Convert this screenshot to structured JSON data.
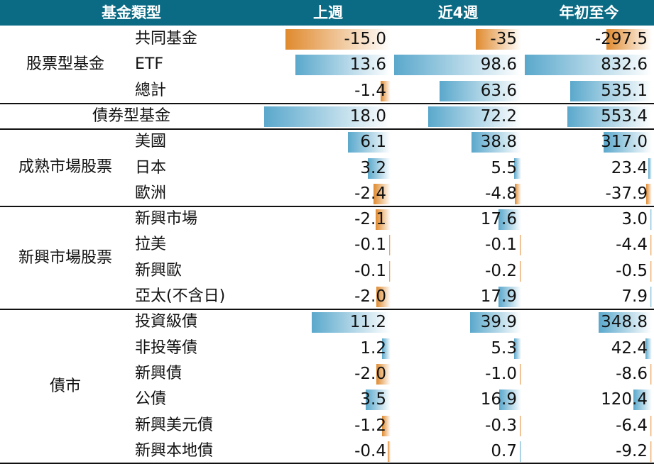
{
  "colors": {
    "header_bg": "#0b6b84",
    "header_text": "#ffffff",
    "positive_bar": "#5aa8cc",
    "negative_bar": "#e08a2e"
  },
  "header": {
    "category": "基金類型",
    "col1": "上週",
    "col2": "近4週",
    "col3": "年初至今"
  },
  "chart_data": {
    "type": "table",
    "columns": [
      "上週",
      "近4週",
      "年初至今"
    ],
    "groups": [
      {
        "name": "股票型基金",
        "rows": [
          {
            "label": "共同基金",
            "values": [
              -15.0,
              -35,
              -297.5
            ],
            "display": [
              "-15.0",
              "-35",
              "-297.5"
            ]
          },
          {
            "label": "ETF",
            "values": [
              13.6,
              98.6,
              832.6
            ],
            "display": [
              "13.6",
              "98.6",
              "832.6"
            ]
          },
          {
            "label": "總計",
            "values": [
              -1.4,
              63.6,
              535.1
            ],
            "display": [
              "-1.4",
              "63.6",
              "535.1"
            ]
          }
        ]
      },
      {
        "name": "債券型基金",
        "rows": [
          {
            "label": "",
            "values": [
              18.0,
              72.2,
              553.4
            ],
            "display": [
              "18.0",
              "72.2",
              "553.4"
            ]
          }
        ]
      },
      {
        "name": "成熟市場股票",
        "rows": [
          {
            "label": "美國",
            "values": [
              6.1,
              38.8,
              317.0
            ],
            "display": [
              "6.1",
              "38.8",
              "317.0"
            ]
          },
          {
            "label": "日本",
            "values": [
              3.2,
              5.5,
              23.4
            ],
            "display": [
              "3.2",
              "5.5",
              "23.4"
            ]
          },
          {
            "label": "歐洲",
            "values": [
              -2.4,
              -4.8,
              -37.9
            ],
            "display": [
              "-2.4",
              "-4.8",
              "-37.9"
            ]
          }
        ]
      },
      {
        "name": "新興市場股票",
        "rows": [
          {
            "label": "新興市場",
            "values": [
              -2.1,
              17.6,
              3.0
            ],
            "display": [
              "-2.1",
              "17.6",
              "3.0"
            ]
          },
          {
            "label": "拉美",
            "values": [
              -0.1,
              -0.1,
              -4.4
            ],
            "display": [
              "-0.1",
              "-0.1",
              "-4.4"
            ]
          },
          {
            "label": "新興歐",
            "values": [
              -0.1,
              -0.2,
              -0.5
            ],
            "display": [
              "-0.1",
              "-0.2",
              "-0.5"
            ]
          },
          {
            "label": "亞太(不含日)",
            "values": [
              -2.0,
              17.9,
              7.9
            ],
            "display": [
              "-2.0",
              "17.9",
              "7.9"
            ]
          }
        ]
      },
      {
        "name": "債市",
        "rows": [
          {
            "label": "投資級債",
            "values": [
              11.2,
              39.9,
              348.8
            ],
            "display": [
              "11.2",
              "39.9",
              "348.8"
            ]
          },
          {
            "label": "非投等債",
            "values": [
              1.2,
              5.3,
              42.4
            ],
            "display": [
              "1.2",
              "5.3",
              "42.4"
            ]
          },
          {
            "label": "新興債",
            "values": [
              -2.0,
              -1.0,
              -8.6
            ],
            "display": [
              "-2.0",
              "-1.0",
              "-8.6"
            ]
          },
          {
            "label": "公債",
            "values": [
              3.5,
              16.9,
              120.4
            ],
            "display": [
              "3.5",
              "16.9",
              "120.4"
            ]
          },
          {
            "label": "新興美元債",
            "values": [
              -1.2,
              -0.3,
              -6.4
            ],
            "display": [
              "-1.2",
              "-0.3",
              "-6.4"
            ]
          },
          {
            "label": "新興本地債",
            "values": [
              -0.4,
              0.7,
              -9.2
            ],
            "display": [
              "-0.4",
              "0.7",
              "-9.2"
            ]
          }
        ]
      }
    ]
  }
}
